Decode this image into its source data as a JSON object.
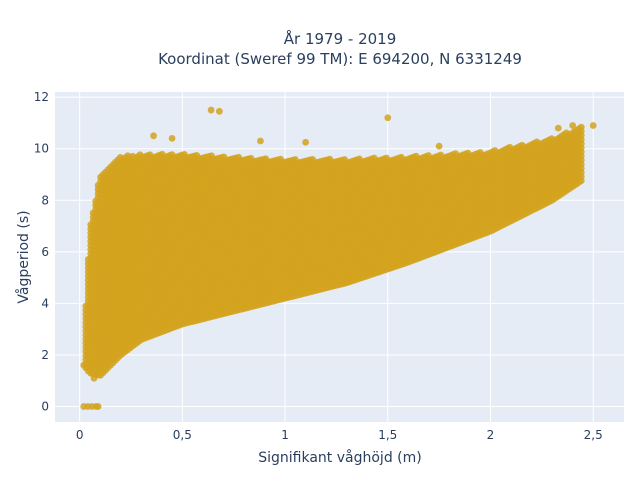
{
  "chart_data": {
    "type": "scatter",
    "title_line1": "År 1979 - 2019",
    "title_line2": "Koordinat (Sweref 99 TM): E 694200, N 6331249",
    "xlabel": "Signifikant våghöjd (m)",
    "ylabel": "Vågperiod (s)",
    "xlim": [
      -0.12,
      2.65
    ],
    "ylim": [
      -0.6,
      12.2
    ],
    "xticks": [
      0,
      0.5,
      1,
      1.5,
      2,
      2.5
    ],
    "xtick_labels": [
      "0",
      "0,5",
      "1",
      "1,5",
      "2",
      "2,5"
    ],
    "yticks": [
      0,
      2,
      4,
      6,
      8,
      10,
      12
    ],
    "ytick_labels": [
      "0",
      "2",
      "4",
      "6",
      "8",
      "10",
      "12"
    ],
    "grid": true,
    "marker_color": "#D4A31E",
    "plot_bg": "#E5ECF6",
    "density_band": {
      "x": [
        0.03,
        0.05,
        0.1,
        0.2,
        0.3,
        0.5,
        0.7,
        1.0,
        1.3,
        1.6,
        2.0,
        2.3,
        2.45
      ],
      "y_low": [
        1.5,
        1.3,
        1.2,
        2.0,
        2.6,
        3.2,
        3.6,
        4.2,
        4.8,
        5.6,
        6.8,
        8.0,
        8.8
      ],
      "y_high": [
        4.0,
        7.0,
        9.0,
        9.7,
        9.8,
        9.8,
        9.7,
        9.6,
        9.6,
        9.7,
        9.9,
        10.4,
        10.9
      ]
    },
    "outliers": [
      {
        "x": 0.02,
        "y": 0.0
      },
      {
        "x": 0.04,
        "y": 0.0
      },
      {
        "x": 0.06,
        "y": 0.0
      },
      {
        "x": 0.08,
        "y": 0.0
      },
      {
        "x": 0.09,
        "y": 0.0
      },
      {
        "x": 0.64,
        "y": 11.5
      },
      {
        "x": 0.68,
        "y": 11.45
      },
      {
        "x": 1.5,
        "y": 11.2
      },
      {
        "x": 0.36,
        "y": 10.5
      },
      {
        "x": 2.4,
        "y": 10.9
      },
      {
        "x": 2.5,
        "y": 10.9
      },
      {
        "x": 2.33,
        "y": 10.8
      },
      {
        "x": 0.88,
        "y": 10.3
      },
      {
        "x": 1.1,
        "y": 10.25
      },
      {
        "x": 1.75,
        "y": 10.1
      },
      {
        "x": 0.02,
        "y": 1.6
      },
      {
        "x": 0.07,
        "y": 1.1
      },
      {
        "x": 0.45,
        "y": 10.4
      }
    ]
  }
}
